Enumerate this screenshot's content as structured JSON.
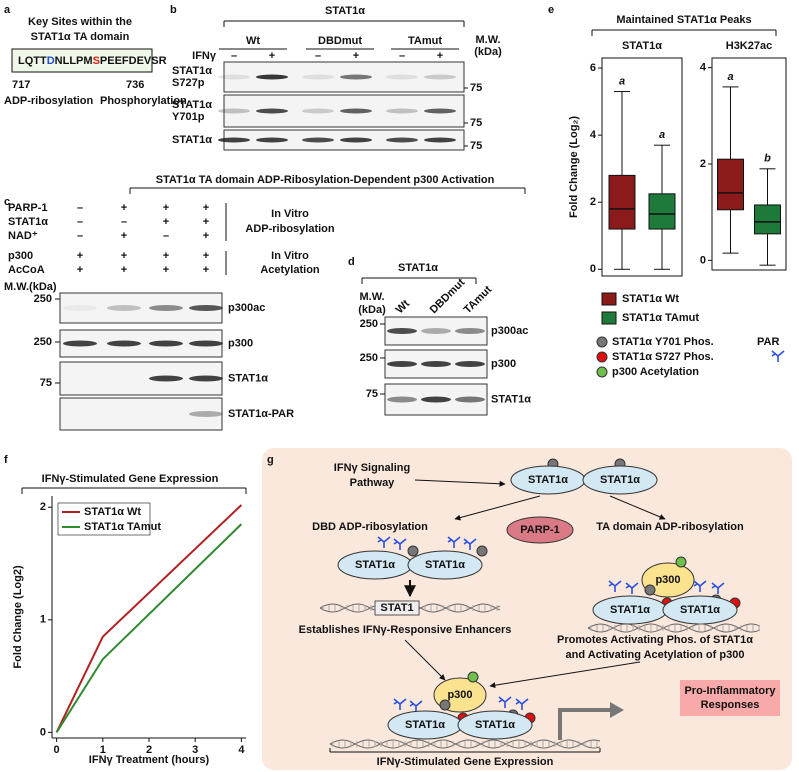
{
  "panels": {
    "a": {
      "label": "a",
      "title": [
        "Key Sites within the",
        "STAT1α TA domain"
      ],
      "sequence": [
        "LQTT",
        "D",
        "NLLPM",
        "S",
        "PEEFDEVSR"
      ],
      "start": "717",
      "end": "736",
      "annotations": [
        "ADP-ribosylation",
        "Phosphorylation"
      ]
    },
    "b": {
      "label": "b",
      "protein": "STAT1α",
      "groups": [
        "Wt",
        "DBDmut",
        "TAmut"
      ],
      "mw": [
        "M.W.",
        "(kDa)"
      ],
      "treatment": "IFNγ",
      "signs": [
        "–",
        "+",
        "–",
        "+",
        "–",
        "+"
      ],
      "rows": [
        [
          "STAT1α",
          "S727p"
        ],
        [
          "STAT1α",
          "Y701p"
        ],
        [
          "STAT1α"
        ]
      ],
      "markers": [
        "75",
        "75",
        "75"
      ]
    },
    "c": {
      "label": "c",
      "header": "STAT1α TA domain ADP-Ribosylation-Dependent p300 Activation",
      "conditions": [
        {
          "name": "PARP-1",
          "signs": [
            "–",
            "+",
            "+",
            "+"
          ]
        },
        {
          "name": "STAT1α",
          "signs": [
            "–",
            "–",
            "+",
            "+"
          ]
        },
        {
          "name": "NAD⁺",
          "signs": [
            "–",
            "+",
            "–",
            "+"
          ]
        },
        {
          "name": "p300",
          "signs": [
            "+",
            "+",
            "+",
            "+"
          ]
        },
        {
          "name": "AcCoA",
          "signs": [
            "+",
            "+",
            "+",
            "+"
          ]
        }
      ],
      "steps": [
        [
          "In Vitro",
          "ADP-ribosylation"
        ],
        [
          "In Vitro",
          "Acetylation"
        ]
      ],
      "mw": "M.W.(kDa)",
      "markers": [
        "250",
        "250",
        "75"
      ],
      "blots": [
        "p300ac",
        "p300",
        "STAT1α",
        "STAT1α-PAR"
      ]
    },
    "d": {
      "label": "d",
      "protein": "STAT1α",
      "mw": [
        "M.W.",
        "(kDa)"
      ],
      "lanes": [
        "Wt",
        "DBDmut",
        "TAmut"
      ],
      "markers": [
        "250",
        "250",
        "75"
      ],
      "blots": [
        "p300ac",
        "p300",
        "STAT1α"
      ]
    },
    "e": {
      "label": "e",
      "title": "Maintained STAT1α Peaks"
    },
    "f": {
      "label": "f"
    },
    "g": {
      "label": "g",
      "legend": [
        "STAT1α Y701 Phos.",
        "STAT1α S727 Phos.",
        "p300 Acetylation"
      ],
      "par": "PAR",
      "pathway": [
        "IFNγ Signaling",
        "Pathway"
      ],
      "stat": [
        "STAT1α",
        "STAT1α",
        "STAT1α",
        "STAT1α",
        "STAT1α",
        "STAT1α",
        "STAT1α",
        "STAT1α"
      ],
      "parp": "PARP-1",
      "dbd": "DBD ADP-ribosylation",
      "ta": "TA domain ADP-ribosylation",
      "p300": [
        "p300",
        "p300"
      ],
      "gene": "STAT1",
      "enhancers": "Establishes IFNγ-Responsive Enhancers",
      "promotes": [
        "Promotes Activating Phos. of STAT1α",
        "and Activating Acetylation of p300"
      ],
      "response": [
        "Pro-Inflammatory",
        "Responses"
      ],
      "output": "IFNγ-Stimulated Gene Expression"
    }
  },
  "chart_data": [
    {
      "type": "box",
      "title": "STAT1α",
      "ylabel": "Fold Change (Log₂)",
      "ylim": [
        -0.2,
        6.3
      ],
      "yticks": [
        0,
        2,
        4,
        6
      ],
      "series": [
        {
          "name": "STAT1α Wt",
          "color": "#8b1a1a",
          "min": 0,
          "q1": 1.2,
          "median": 1.8,
          "q3": 2.8,
          "max": 5.3,
          "letter": "a"
        },
        {
          "name": "STAT1α TAmut",
          "color": "#1e7a3a",
          "min": 0,
          "q1": 1.2,
          "median": 1.65,
          "q3": 2.25,
          "max": 3.7,
          "letter": "a"
        }
      ]
    },
    {
      "type": "box",
      "title": "H3K27ac",
      "ylim": [
        -0.2,
        4.2
      ],
      "yticks": [
        0,
        2,
        4
      ],
      "series": [
        {
          "color": "#8b1a1a",
          "min": 0.15,
          "q1": 1.05,
          "median": 1.4,
          "q3": 2.1,
          "max": 3.6,
          "letter": "a"
        },
        {
          "color": "#1e7a3a",
          "min": -0.1,
          "q1": 0.55,
          "median": 0.8,
          "q3": 1.15,
          "max": 1.9,
          "letter": "b"
        }
      ]
    },
    {
      "type": "line",
      "title": "IFNγ-Stimulated Gene Expression",
      "xlabel": "IFNγ Treatment (hours)",
      "ylabel": "Fold Change (Log2)",
      "x": [
        0,
        1,
        4
      ],
      "xlim": [
        -0.1,
        4.1
      ],
      "ylim": [
        -0.05,
        2.1
      ],
      "xticks": [
        0,
        1,
        2,
        3,
        4
      ],
      "yticks": [
        0,
        1,
        2
      ],
      "series": [
        {
          "name": "STAT1α Wt",
          "color": "#b22222",
          "values": [
            0,
            0.85,
            2.02
          ]
        },
        {
          "name": "STAT1α TAmut",
          "color": "#2e8b2e",
          "values": [
            0,
            0.65,
            1.85
          ]
        }
      ]
    }
  ]
}
